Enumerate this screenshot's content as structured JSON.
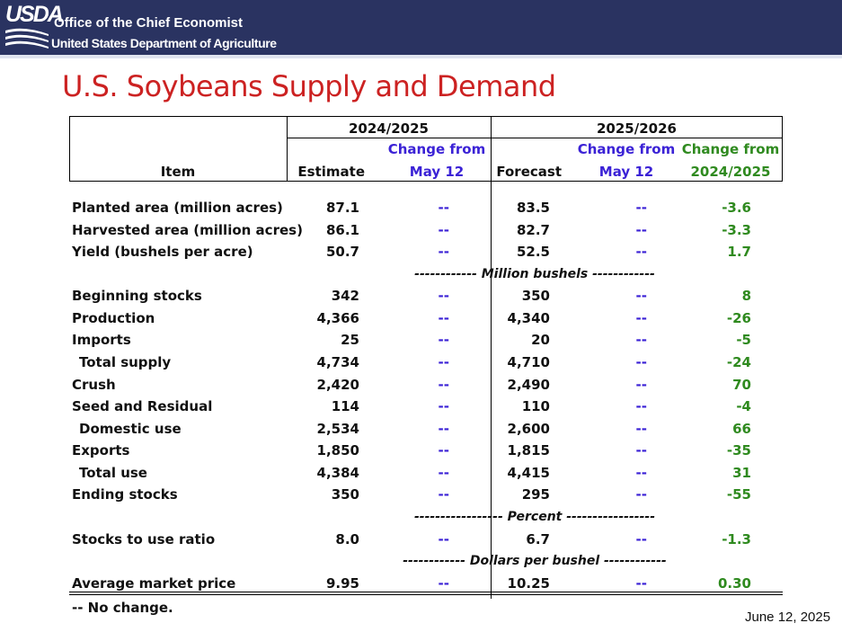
{
  "header": {
    "logo_text": "USDA",
    "office": "Office of the Chief Economist",
    "department": "United States Department of Agriculture"
  },
  "title": "U.S. Soybeans Supply and Demand",
  "table": {
    "year1": "2024/2025",
    "year2": "2025/2026",
    "col_item": "Item",
    "col_estimate": "Estimate",
    "col_forecast": "Forecast",
    "change_from": "Change from",
    "may12": "May 12",
    "prior_year": "2024/2025",
    "rows": [
      {
        "item": "Planted area (million acres)",
        "est": "87.1",
        "chg1": "--",
        "fc": "83.5",
        "chg2": "--",
        "chg3": "-3.6"
      },
      {
        "item": "Harvested area (million acres)",
        "est": "86.1",
        "chg1": "--",
        "fc": "82.7",
        "chg2": "--",
        "chg3": "-3.3"
      },
      {
        "item": "Yield (bushels per acre)",
        "est": "50.7",
        "chg1": "--",
        "fc": "52.5",
        "chg2": "--",
        "chg3": "1.7"
      },
      {
        "item": "Beginning stocks",
        "est": "342",
        "chg1": "--",
        "fc": "350",
        "chg2": "--",
        "chg3": "8"
      },
      {
        "item": "Production",
        "est": "4,366",
        "chg1": "--",
        "fc": "4,340",
        "chg2": "--",
        "chg3": "-26"
      },
      {
        "item": "Imports",
        "est": "25",
        "chg1": "--",
        "fc": "20",
        "chg2": "--",
        "chg3": "-5"
      },
      {
        "item": "Total supply",
        "est": "4,734",
        "chg1": "--",
        "fc": "4,710",
        "chg2": "--",
        "chg3": "-24"
      },
      {
        "item": "Crush",
        "est": "2,420",
        "chg1": "--",
        "fc": "2,490",
        "chg2": "--",
        "chg3": "70"
      },
      {
        "item": "Seed and Residual",
        "est": "114",
        "chg1": "--",
        "fc": "110",
        "chg2": "--",
        "chg3": "-4"
      },
      {
        "item": "Domestic use",
        "est": "2,534",
        "chg1": "--",
        "fc": "2,600",
        "chg2": "--",
        "chg3": "66"
      },
      {
        "item": "Exports",
        "est": "1,850",
        "chg1": "--",
        "fc": "1,815",
        "chg2": "--",
        "chg3": "-35"
      },
      {
        "item": "Total use",
        "est": "4,384",
        "chg1": "--",
        "fc": "4,415",
        "chg2": "--",
        "chg3": "31"
      },
      {
        "item": "Ending stocks",
        "est": "350",
        "chg1": "--",
        "fc": "295",
        "chg2": "--",
        "chg3": "-55"
      },
      {
        "item": "Stocks to use ratio",
        "est": "8.0",
        "chg1": "--",
        "fc": "6.7",
        "chg2": "--",
        "chg3": "-1.3"
      },
      {
        "item": "Average market price",
        "est": "9.95",
        "chg1": "--",
        "fc": "10.25",
        "chg2": "--",
        "chg3": "0.30"
      }
    ],
    "unit_million_bushels": "------------ Million bushels ------------",
    "unit_percent": "----------------- Percent -----------------",
    "unit_dollars": "------------ Dollars per bushel ------------"
  },
  "footnote": "-- No change.",
  "date": "June 12, 2025"
}
